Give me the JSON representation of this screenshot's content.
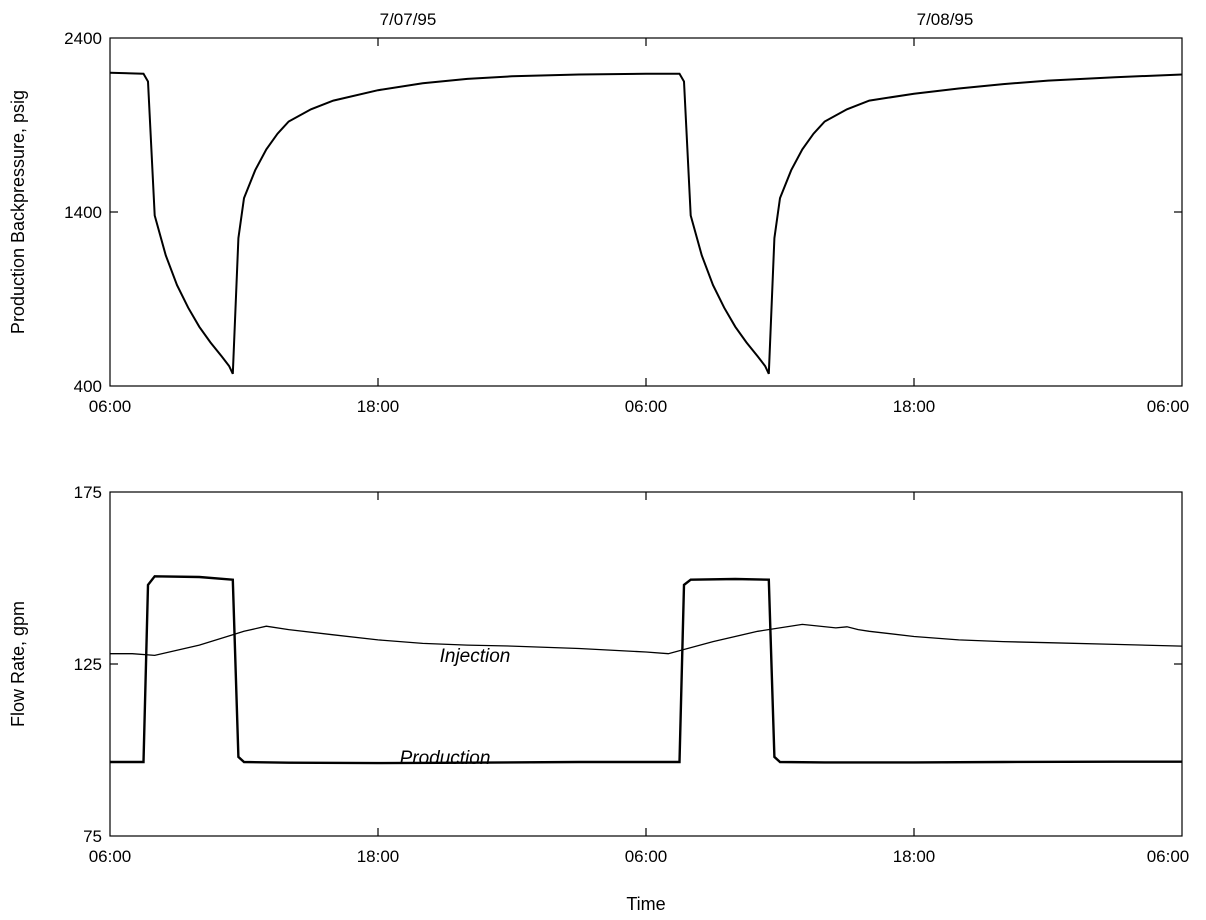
{
  "chart_data": [
    {
      "type": "line",
      "title": "",
      "xlabel": "",
      "ylabel": "Production Backpressure, psig",
      "ylim": [
        400,
        2400
      ],
      "yticks": [
        "400",
        "1400",
        "2400"
      ],
      "xlim": [
        "1995-07-07T06:00",
        "1995-07-09T06:00"
      ],
      "xticks": [
        "06:00",
        "18:00",
        "06:00",
        "18:00",
        "06:00"
      ],
      "top_date_labels": [
        "7/07/95",
        "7/08/95"
      ],
      "grid": false,
      "series": [
        {
          "x": [
            "1995-07-07T06:00",
            "1995-07-07T07:30",
            "1995-07-07T07:42",
            "1995-07-07T08:00",
            "1995-07-07T08:30",
            "1995-07-07T09:00",
            "1995-07-07T09:30",
            "1995-07-07T10:00",
            "1995-07-07T10:30",
            "1995-07-07T11:00",
            "1995-07-07T11:20",
            "1995-07-07T11:30",
            "1995-07-07T11:45",
            "1995-07-07T12:00",
            "1995-07-07T12:30",
            "1995-07-07T13:00",
            "1995-07-07T13:30",
            "1995-07-07T14:00",
            "1995-07-07T15:00",
            "1995-07-07T16:00",
            "1995-07-07T18:00",
            "1995-07-07T20:00",
            "1995-07-07T22:00",
            "1995-07-08T00:00",
            "1995-07-08T03:00",
            "1995-07-08T06:00",
            "1995-07-08T07:30",
            "1995-07-08T07:42",
            "1995-07-08T08:00",
            "1995-07-08T08:30",
            "1995-07-08T09:00",
            "1995-07-08T09:30",
            "1995-07-08T10:00",
            "1995-07-08T10:30",
            "1995-07-08T11:00",
            "1995-07-08T11:20",
            "1995-07-08T11:30",
            "1995-07-08T11:45",
            "1995-07-08T12:00",
            "1995-07-08T12:30",
            "1995-07-08T13:00",
            "1995-07-08T13:30",
            "1995-07-08T14:00",
            "1995-07-08T15:00",
            "1995-07-08T16:00",
            "1995-07-08T18:00",
            "1995-07-08T20:00",
            "1995-07-08T22:00",
            "1995-07-09T00:00",
            "1995-07-09T03:00",
            "1995-07-09T06:00"
          ],
          "values": [
            2200,
            2195,
            2150,
            1380,
            1150,
            980,
            850,
            740,
            650,
            570,
            515,
            470,
            1250,
            1480,
            1640,
            1760,
            1850,
            1920,
            1990,
            2040,
            2100,
            2140,
            2165,
            2180,
            2190,
            2195,
            2195,
            2150,
            1380,
            1150,
            980,
            850,
            740,
            650,
            570,
            515,
            470,
            1250,
            1480,
            1640,
            1760,
            1850,
            1920,
            1990,
            2040,
            2080,
            2110,
            2135,
            2155,
            2175,
            2190
          ]
        }
      ]
    },
    {
      "type": "line",
      "title": "",
      "xlabel": "Time",
      "ylabel": "Flow Rate, gpm",
      "ylim": [
        75,
        175
      ],
      "yticks": [
        "75",
        "125",
        "175"
      ],
      "xlim": [
        "1995-07-07T06:00",
        "1995-07-09T06:00"
      ],
      "xticks": [
        "06:00",
        "18:00",
        "06:00",
        "18:00",
        "06:00"
      ],
      "grid": false,
      "series": [
        {
          "name": "Injection",
          "x": [
            "1995-07-07T06:00",
            "1995-07-07T07:00",
            "1995-07-07T08:00",
            "1995-07-07T10:00",
            "1995-07-07T12:00",
            "1995-07-07T13:00",
            "1995-07-07T14:00",
            "1995-07-07T16:00",
            "1995-07-07T18:00",
            "1995-07-07T20:00",
            "1995-07-07T22:00",
            "1995-07-08T00:00",
            "1995-07-08T03:00",
            "1995-07-08T06:00",
            "1995-07-08T07:00",
            "1995-07-08T09:00",
            "1995-07-08T11:00",
            "1995-07-08T13:00",
            "1995-07-08T14:30",
            "1995-07-08T15:00",
            "1995-07-08T15:30",
            "1995-07-08T16:00",
            "1995-07-08T18:00",
            "1995-07-08T20:00",
            "1995-07-08T22:00",
            "1995-07-09T00:00",
            "1995-07-09T03:00",
            "1995-07-09T06:00"
          ],
          "values": [
            128,
            128,
            127.5,
            130.5,
            134.5,
            136,
            135,
            133.5,
            132,
            131,
            130.5,
            130.2,
            129.5,
            128.5,
            128,
            131.5,
            134.5,
            136.5,
            135.5,
            135.8,
            135,
            134.5,
            133,
            132,
            131.5,
            131.2,
            130.7,
            130.2
          ]
        },
        {
          "name": "Production",
          "x": [
            "1995-07-07T06:00",
            "1995-07-07T07:30",
            "1995-07-07T07:42",
            "1995-07-07T08:00",
            "1995-07-07T10:00",
            "1995-07-07T11:30",
            "1995-07-07T11:45",
            "1995-07-07T12:00",
            "1995-07-07T14:00",
            "1995-07-07T18:00",
            "1995-07-07T22:00",
            "1995-07-08T03:00",
            "1995-07-08T07:30",
            "1995-07-08T07:42",
            "1995-07-08T08:00",
            "1995-07-08T10:00",
            "1995-07-08T11:30",
            "1995-07-08T11:45",
            "1995-07-08T12:00",
            "1995-07-08T14:00",
            "1995-07-08T18:00",
            "1995-07-08T22:00",
            "1995-07-09T03:00",
            "1995-07-09T06:00"
          ],
          "values": [
            96.5,
            96.5,
            148,
            150.5,
            150.3,
            149.5,
            98,
            96.5,
            96.3,
            96.2,
            96.3,
            96.5,
            96.5,
            148,
            149.5,
            149.7,
            149.5,
            98,
            96.5,
            96.4,
            96.4,
            96.5,
            96.6,
            96.6
          ]
        }
      ]
    }
  ]
}
